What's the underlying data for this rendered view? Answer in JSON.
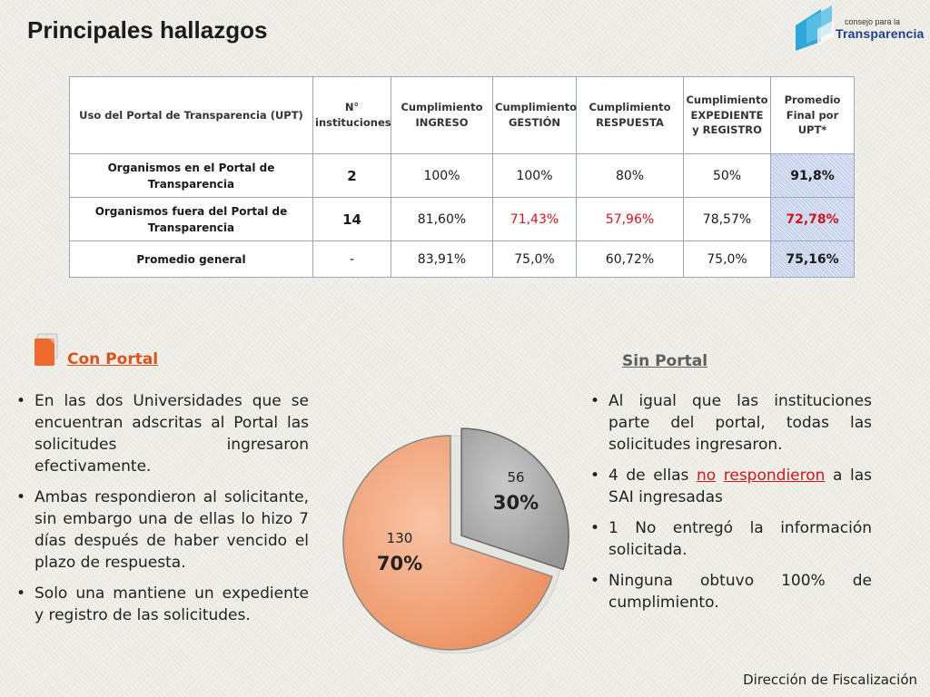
{
  "slide": {
    "title": "Principales hallazgos"
  },
  "logo": {
    "small_text": "consejo para la",
    "big_text": "Transparencia"
  },
  "table": {
    "headers": [
      "Uso del Portal de Transparencia (UPT)",
      "N° instituciones",
      "Cumplimiento INGRESO",
      "Cumplimiento GESTIÓN",
      "Cumplimiento RESPUESTA",
      "Cumplimiento EXPEDIENTE y REGISTRO",
      "Promedio Final por UPT*"
    ],
    "rows": [
      {
        "label": "Organismos en el Portal de Transparencia",
        "count": "2",
        "ingreso": "100%",
        "gestion": "100%",
        "respuesta": "80%",
        "expediente": "50%",
        "final": "91,8%"
      },
      {
        "label": "Organismos fuera del Portal de Transparencia",
        "count": "14",
        "ingreso": "81,60%",
        "gestion": "71,43%",
        "respuesta": "57,96%",
        "expediente": "78,57%",
        "final": "72,78%"
      },
      {
        "label": "Promedio general",
        "count": "-",
        "ingreso": "83,91%",
        "gestion": "75,0%",
        "respuesta": "60,72%",
        "expediente": "75,0%",
        "final": "75,16%"
      }
    ]
  },
  "con_portal": {
    "heading": "Con Portal",
    "bullets": [
      "En las dos Universidades que se encuentran adscritas al Portal las solicitudes ingresaron efectivamente.",
      "Ambas respondieron al solicitante, sin embargo una de ellas lo hizo 7 días después de haber vencido el plazo de respuesta.",
      "Solo una mantiene un expediente y registro de las solicitudes."
    ]
  },
  "sin_portal": {
    "heading": "Sin Portal",
    "bullet1": "Al igual que las instituciones parte del portal, todas las solicitudes ingresaron.",
    "bullet2_pre": "4 de ellas ",
    "bullet2_no": "no",
    "bullet2_resp": "respondieron",
    "bullet2_post": " a las SAI ingresadas",
    "bullet3": "1 No entregó la información solicitada.",
    "bullet4": "Ninguna obtuvo 100% de cumplimiento."
  },
  "chart_data": {
    "type": "pie",
    "slices": [
      {
        "value": 56,
        "label": "56",
        "percent": "30%",
        "color": "#a9a9a9"
      },
      {
        "value": 130,
        "label": "130",
        "percent": "70%",
        "color": "#f2a57c"
      }
    ]
  },
  "footer": {
    "text": "Dirección de Fiscalización"
  }
}
